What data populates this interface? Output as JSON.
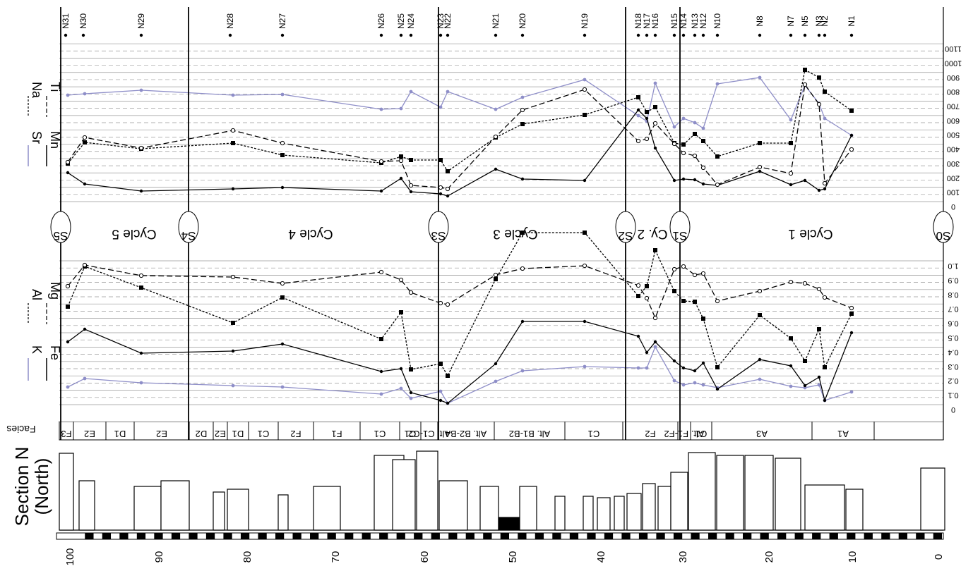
{
  "title_section": "Section N",
  "title_region": "(North)",
  "facies_label": "Facies",
  "sample_labels": [
    "N31",
    "N30",
    "N29",
    "N28",
    "N27",
    "N26",
    "N25",
    "N24",
    "N23",
    "N22",
    "N21",
    "N20",
    "N19",
    "N18",
    "N17",
    "N16",
    "N15",
    "N14",
    "N13",
    "N12",
    "N10",
    "N8",
    "N7",
    "N5",
    "N3",
    "N2",
    "N1"
  ],
  "cycles": [
    "Cycle 5",
    "Cycle 4",
    "Cycle 3",
    "Cy. 2",
    "Cycle 1"
  ],
  "surfaces": [
    "S5",
    "S4",
    "S3",
    "S2",
    "S1",
    "S0"
  ],
  "facies": [
    "F3",
    "E2",
    "D1",
    "E2",
    "D2",
    "E2",
    "D1",
    "C1",
    "F2",
    "F1",
    "C1",
    "C1",
    "Alt. C1-C2",
    "Alt. B2-B4",
    "Alt. B1-B2",
    "C1",
    "F2",
    "Alt. F1-F2",
    "C1",
    "A3",
    "A1"
  ],
  "legend_top": {
    "sr": "Sr",
    "mn": "Mn",
    "na": "Na",
    "ti": "Ti"
  },
  "legend_bottom": {
    "k": "K",
    "fe": "Fe",
    "al": "Al",
    "mg": "Mg"
  },
  "scale_ticks": [
    "100",
    "90",
    "80",
    "70",
    "60",
    "50",
    "40",
    "30",
    "20",
    "10",
    "0"
  ],
  "top_axis_ticks": [
    "0",
    "100",
    "200",
    "300",
    "400",
    "500",
    "600",
    "700",
    "800",
    "900",
    "1000",
    "1100"
  ],
  "bottom_axis_ticks": [
    "0",
    "0.1",
    "0.2",
    "0.3",
    "0.4",
    "0.5",
    "0.6",
    "0.7",
    "0.8",
    "0.9",
    "1.0"
  ],
  "colors": {
    "sr": "#8e8ec8",
    "k": "#8e8ec8",
    "line": "#000000"
  }
}
